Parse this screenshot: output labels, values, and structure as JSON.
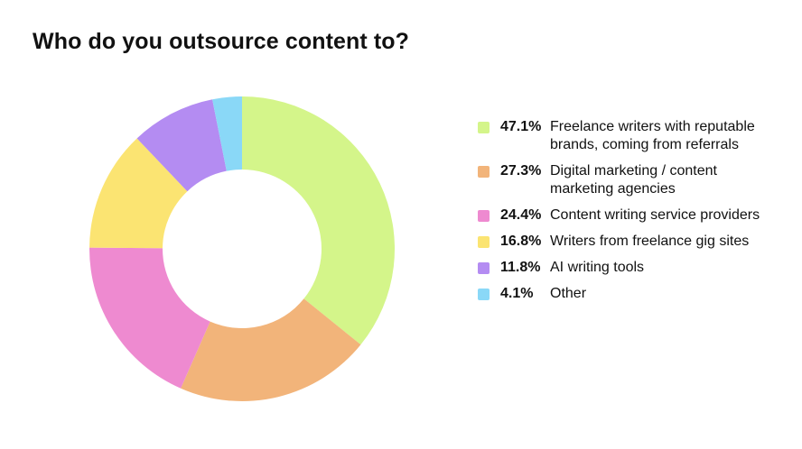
{
  "chart_data": {
    "type": "pie",
    "title": "Who do you outsource content to?",
    "categories": [
      "Freelance writers with reputable brands, coming from referrals",
      "Digital marketing / content marketing agencies",
      "Content writing service providers",
      "Writers from freelance gig sites",
      "AI writing tools",
      "Other"
    ],
    "value_labels": [
      "47.1%",
      "27.3%",
      "24.4%",
      "16.8%",
      "11.8%",
      "4.1%"
    ],
    "values": [
      47.1,
      27.3,
      24.4,
      16.8,
      11.8,
      4.1
    ],
    "colors": [
      "#d4f58a",
      "#f2b47a",
      "#ee8ad0",
      "#fbe472",
      "#b48cf2",
      "#8ad8f7"
    ],
    "donut": true,
    "legend_position": "right"
  }
}
